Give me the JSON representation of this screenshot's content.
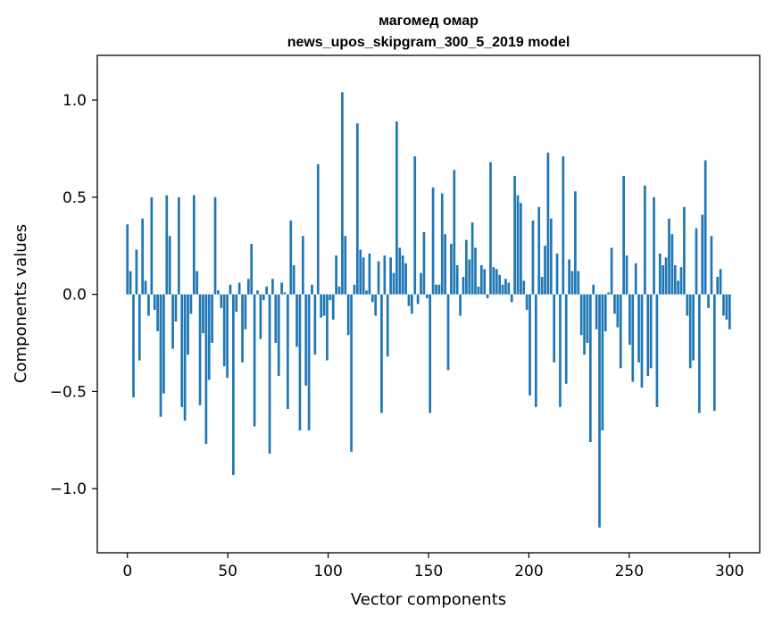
{
  "chart_data": {
    "type": "bar",
    "title_line1": "магомед омар",
    "title_line2": "news_upos_skipgram_300_5_2019 model",
    "xlabel": "Vector components",
    "ylabel": "Components values",
    "xlim": [
      -15,
      315
    ],
    "ylim": [
      -1.33,
      1.23
    ],
    "x_ticks": [
      0,
      50,
      100,
      150,
      200,
      250,
      300
    ],
    "x_tick_labels": [
      "0",
      "50",
      "100",
      "150",
      "200",
      "250",
      "300"
    ],
    "y_ticks": [
      -1.0,
      -0.5,
      0.0,
      0.5,
      1.0
    ],
    "y_tick_labels": [
      "−1.0",
      "−0.5",
      "0.0",
      "0.5",
      "1.0"
    ],
    "bar_color": "#1f77b4",
    "grid": false,
    "legend": "none",
    "values": [
      0.36,
      0.12,
      -0.53,
      0.23,
      -0.34,
      0.39,
      0.07,
      -0.11,
      0.5,
      -0.08,
      -0.19,
      -0.63,
      -0.51,
      0.51,
      0.3,
      -0.28,
      -0.14,
      0.5,
      -0.58,
      -0.65,
      -0.31,
      -0.1,
      0.51,
      0.12,
      -0.57,
      -0.2,
      -0.77,
      -0.44,
      -0.25,
      0.5,
      0.02,
      -0.07,
      -0.37,
      -0.43,
      0.05,
      -0.93,
      -0.09,
      0.06,
      -0.35,
      -0.18,
      0.08,
      0.26,
      -0.68,
      0.02,
      -0.23,
      -0.03,
      0.04,
      -0.82,
      0.08,
      -0.25,
      -0.42,
      0.06,
      0.01,
      -0.59,
      0.38,
      0.15,
      -0.27,
      -0.7,
      0.3,
      -0.47,
      -0.7,
      0.05,
      -0.31,
      0.67,
      -0.12,
      -0.11,
      -0.34,
      -0.03,
      -0.13,
      0.2,
      0.04,
      1.04,
      0.3,
      -0.21,
      -0.81,
      0.05,
      0.88,
      0.23,
      0.19,
      0.02,
      0.21,
      -0.04,
      -0.11,
      0.17,
      -0.61,
      0.2,
      -0.32,
      0.19,
      0.11,
      0.89,
      0.24,
      0.2,
      0.16,
      -0.06,
      -0.1,
      0.71,
      -0.05,
      0.11,
      0.32,
      -0.02,
      -0.61,
      0.55,
      0.05,
      0.05,
      0.52,
      0.31,
      -0.39,
      0.26,
      0.64,
      0.15,
      -0.11,
      0.09,
      0.28,
      0.18,
      0.37,
      0.24,
      0.04,
      0.15,
      0.13,
      -0.02,
      0.68,
      0.14,
      0.13,
      0.1,
      0.05,
      0.08,
      0.06,
      -0.04,
      0.61,
      0.51,
      0.47,
      0.07,
      -0.08,
      -0.52,
      0.38,
      -0.58,
      0.45,
      0.09,
      0.25,
      0.73,
      0.39,
      -0.35,
      0.21,
      -0.58,
      0.71,
      -0.46,
      0.18,
      0.12,
      0.53,
      0.12,
      -0.21,
      -0.31,
      -0.25,
      -0.76,
      0.05,
      -0.18,
      -1.2,
      -0.7,
      -0.19,
      0.01,
      0.24,
      -0.1,
      -0.17,
      -0.38,
      0.61,
      0.2,
      -0.26,
      -0.45,
      0.16,
      -0.35,
      -0.48,
      0.56,
      -0.42,
      -0.38,
      0.5,
      -0.58,
      0.21,
      0.15,
      0.19,
      0.39,
      0.31,
      0.15,
      0.07,
      0.14,
      0.45,
      -0.11,
      -0.38,
      -0.34,
      0.34,
      -0.61,
      0.41,
      0.69,
      -0.07,
      0.3,
      -0.6,
      0.09,
      0.13,
      -0.11,
      -0.13,
      -0.18
    ]
  }
}
